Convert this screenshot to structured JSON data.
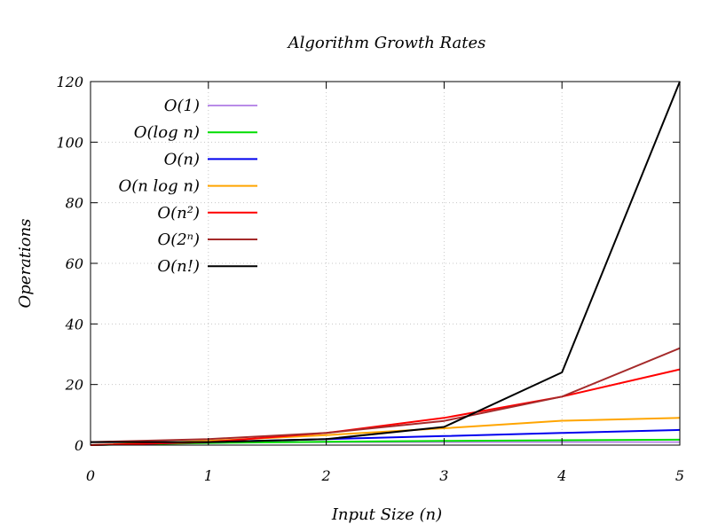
{
  "chart_data": {
    "type": "line",
    "title": "Algorithm Growth Rates",
    "xlabel": "Input Size (n)",
    "ylabel": "Operations",
    "xlim": [
      0,
      5
    ],
    "ylim": [
      0,
      120
    ],
    "x_ticks": [
      0,
      1,
      2,
      3,
      4,
      5
    ],
    "y_ticks": [
      0,
      20,
      40,
      60,
      80,
      100,
      120
    ],
    "grid": true,
    "legend_position": "top-left",
    "x": [
      0,
      1,
      2,
      3,
      4,
      5
    ],
    "series": [
      {
        "name": "O(1)",
        "color": "#b98be8",
        "values": [
          1,
          1,
          1,
          1,
          1,
          1
        ]
      },
      {
        "name": "O(log n)",
        "color": "#00dd00",
        "values": [
          0,
          0.69,
          1.1,
          1.39,
          1.61,
          1.79
        ]
      },
      {
        "name": "O(n)",
        "color": "#0000ee",
        "values": [
          0,
          1,
          2,
          3,
          4,
          5
        ]
      },
      {
        "name": "O(n log n)",
        "color": "#ffa500",
        "values": [
          0,
          1.39,
          3.3,
          5.55,
          8.05,
          9
        ]
      },
      {
        "name": "O(n²)",
        "color": "#ff0000",
        "values": [
          0,
          1,
          4,
          9,
          16,
          25
        ]
      },
      {
        "name": "O(2ⁿ)",
        "color": "#a52a2a",
        "values": [
          1,
          2,
          4,
          8,
          16,
          32
        ]
      },
      {
        "name": "O(n!)",
        "color": "#000000",
        "values": [
          1,
          1,
          2,
          6,
          24,
          120
        ]
      }
    ]
  }
}
